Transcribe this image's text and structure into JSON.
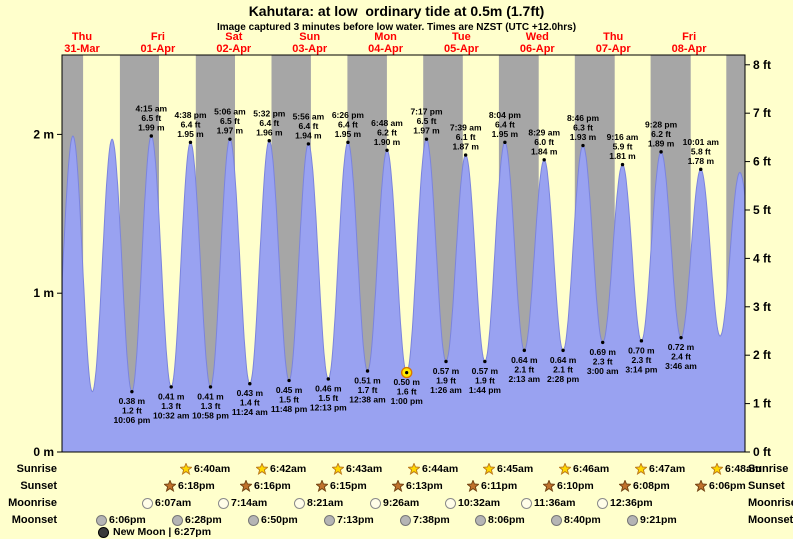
{
  "chart_data": {
    "type": "area",
    "title": "Kahutara: at low  ordinary tide at 0.5m (1.7ft)",
    "subtitle": "Image captured 3 minutes before low water. Times are NZST (UTC +12.0hrs)",
    "x_range_days": 9,
    "ylim_m": [
      0,
      2.5
    ],
    "grid": false,
    "legend": false,
    "days": [
      {
        "name": "Thu",
        "date": "31-Mar"
      },
      {
        "name": "Fri",
        "date": "01-Apr"
      },
      {
        "name": "Sat",
        "date": "02-Apr"
      },
      {
        "name": "Sun",
        "date": "03-Apr"
      },
      {
        "name": "Mon",
        "date": "04-Apr"
      },
      {
        "name": "Tue",
        "date": "05-Apr"
      },
      {
        "name": "Wed",
        "date": "06-Apr"
      },
      {
        "name": "Thu",
        "date": "07-Apr"
      },
      {
        "name": "Fri",
        "date": "08-Apr"
      }
    ],
    "y_axis": {
      "left": [
        "0 m",
        "1 m",
        "2 m"
      ],
      "right": [
        "0 ft",
        "1 ft",
        "2 ft",
        "3 ft",
        "4 ft",
        "5 ft",
        "6 ft",
        "7 ft",
        "8 ft"
      ]
    },
    "tide_events": [
      {
        "t": -0.12,
        "type": "low",
        "m": "0.36",
        "labeled": false
      },
      {
        "t": 0.144,
        "type": "high",
        "m": "1.99",
        "labeled": false
      },
      {
        "t": 0.4,
        "type": "low",
        "m": "0.38",
        "labeled": false
      },
      {
        "t": 0.66,
        "type": "high",
        "m": "1.97",
        "labeled": false
      },
      {
        "t": 0.921,
        "type": "low",
        "time": "10:06 pm",
        "ft": "1.2",
        "m": "0.38",
        "labeled": true
      },
      {
        "t": 1.177,
        "type": "high",
        "time": "4:15 am",
        "ft": "6.5",
        "m": "1.99",
        "labeled": true
      },
      {
        "t": 1.439,
        "type": "low",
        "time": "10:32 am",
        "ft": "1.3",
        "m": "0.41",
        "labeled": true
      },
      {
        "t": 1.693,
        "type": "high",
        "time": "4:38 pm",
        "ft": "6.4",
        "m": "1.95",
        "labeled": true
      },
      {
        "t": 1.957,
        "type": "low",
        "time": "10:58 pm",
        "ft": "1.3",
        "m": "0.41",
        "labeled": true
      },
      {
        "t": 2.213,
        "type": "high",
        "time": "5:06 am",
        "ft": "6.5",
        "m": "1.97",
        "labeled": true
      },
      {
        "t": 2.475,
        "type": "low",
        "time": "11:24 am",
        "ft": "1.4",
        "m": "0.43",
        "labeled": true
      },
      {
        "t": 2.731,
        "type": "high",
        "time": "5:32 pm",
        "ft": "6.4",
        "m": "1.96",
        "labeled": true
      },
      {
        "t": 2.992,
        "type": "low",
        "time": "11:48 pm",
        "ft": "1.5",
        "m": "0.45",
        "labeled": true
      },
      {
        "t": 3.247,
        "type": "high",
        "time": "5:56 am",
        "ft": "6.4",
        "m": "1.94",
        "labeled": true
      },
      {
        "t": 3.509,
        "type": "low",
        "time": "12:13 pm",
        "ft": "1.5",
        "m": "0.46",
        "labeled": true
      },
      {
        "t": 3.768,
        "type": "high",
        "time": "6:26 pm",
        "ft": "6.4",
        "m": "1.95",
        "labeled": true
      },
      {
        "t": 4.026,
        "type": "low",
        "time": "12:38 am",
        "ft": "1.7",
        "m": "0.51",
        "labeled": true
      },
      {
        "t": 4.283,
        "type": "high",
        "time": "6:48 am",
        "ft": "6.2",
        "m": "1.90",
        "labeled": true
      },
      {
        "t": 4.542,
        "type": "low",
        "time": "1:00 pm",
        "ft": "1.6",
        "m": "0.50",
        "labeled": true,
        "current": true
      },
      {
        "t": 4.803,
        "type": "high",
        "time": "7:17 pm",
        "ft": "6.5",
        "m": "1.97",
        "labeled": true
      },
      {
        "t": 5.06,
        "type": "low",
        "time": "1:26 am",
        "ft": "1.9",
        "m": "0.57",
        "labeled": true
      },
      {
        "t": 5.319,
        "type": "high",
        "time": "7:39 am",
        "ft": "6.1",
        "m": "1.87",
        "labeled": true
      },
      {
        "t": 5.572,
        "type": "low",
        "time": "1:44 pm",
        "ft": "1.9",
        "m": "0.57",
        "labeled": true
      },
      {
        "t": 5.836,
        "type": "high",
        "time": "8:04 pm",
        "ft": "6.4",
        "m": "1.95",
        "labeled": true
      },
      {
        "t": 6.092,
        "type": "low",
        "time": "2:13 am",
        "ft": "2.1",
        "m": "0.64",
        "labeled": true
      },
      {
        "t": 6.354,
        "type": "high",
        "time": "8:29 am",
        "ft": "6.0",
        "m": "1.84",
        "labeled": true
      },
      {
        "t": 6.603,
        "type": "low",
        "time": "2:28 pm",
        "ft": "2.1",
        "m": "0.64",
        "labeled": true
      },
      {
        "t": 6.865,
        "type": "high",
        "time": "8:46 pm",
        "ft": "6.3",
        "m": "1.93",
        "labeled": true
      },
      {
        "t": 7.125,
        "type": "low",
        "time": "3:00 am",
        "ft": "2.3",
        "m": "0.69",
        "labeled": true
      },
      {
        "t": 7.386,
        "type": "high",
        "time": "9:16 am",
        "ft": "5.9",
        "m": "1.81",
        "labeled": true
      },
      {
        "t": 7.635,
        "type": "low",
        "time": "3:14 pm",
        "ft": "2.3",
        "m": "0.70",
        "labeled": true
      },
      {
        "t": 7.894,
        "type": "high",
        "time": "9:28 pm",
        "ft": "6.2",
        "m": "1.89",
        "labeled": true
      },
      {
        "t": 8.157,
        "type": "low",
        "time": "3:46 am",
        "ft": "2.4",
        "m": "0.72",
        "labeled": true
      },
      {
        "t": 8.417,
        "type": "high",
        "time": "10:01 am",
        "ft": "5.8",
        "m": "1.78",
        "labeled": true
      },
      {
        "t": 8.672,
        "type": "low",
        "m": "0.73",
        "labeled": false
      },
      {
        "t": 8.932,
        "type": "high",
        "m": "1.76",
        "labeled": false
      },
      {
        "t": 9.2,
        "type": "low",
        "m": "0.75",
        "labeled": false
      }
    ],
    "current_marker": {
      "time": "1:00 pm",
      "m": "0.50"
    }
  },
  "astro": {
    "rows": [
      {
        "label": "Sunrise",
        "icon": "sunrise-star-icon",
        "start_day": 1,
        "times": [
          "6:40am",
          "6:42am",
          "6:43am",
          "6:44am",
          "6:45am",
          "6:46am",
          "6:47am",
          "6:48am"
        ]
      },
      {
        "label": "Sunset",
        "icon": "sunset-star-icon",
        "start_day": 1,
        "times": [
          "6:18pm",
          "6:16pm",
          "6:15pm",
          "6:13pm",
          "6:11pm",
          "6:10pm",
          "6:08pm",
          "6:06pm"
        ]
      },
      {
        "label": "Moonrise",
        "icon": "moonrise-icon",
        "start_day": 1,
        "times": [
          "6:07am",
          "7:14am",
          "8:21am",
          "9:26am",
          "10:32am",
          "11:36am",
          "12:36pm"
        ]
      },
      {
        "label": "Moonset",
        "icon": "moonset-icon",
        "start_day": 0,
        "times": [
          "6:06pm",
          "6:28pm",
          "6:50pm",
          "7:13pm",
          "7:38pm",
          "8:06pm",
          "8:40pm",
          "9:21pm"
        ]
      }
    ],
    "new_moon": {
      "text": "New Moon | 6:27pm"
    }
  },
  "colors": {
    "background": "#ffffcc",
    "night_band": "#a6a6a6",
    "tide_fill": "#99a2f1",
    "tide_stroke": "#7b84dd",
    "day_label": "#ff0000",
    "text": "#000000",
    "sun_marker_fill": "#ffec00",
    "sun_marker_ring": "#d97800",
    "sunrise_star_fill": "#ffd700",
    "sunrise_star_stroke": "#b8741a",
    "sunset_star_fill": "#c0722c",
    "sunset_star_stroke": "#6d3f10",
    "moonrise_fill": "#fffde8",
    "moonrise_stroke": "#8a8a8a",
    "moonset_fill": "#b5b5b5",
    "moonset_stroke": "#777777",
    "new_moon_fill": "#3a3a3a"
  }
}
